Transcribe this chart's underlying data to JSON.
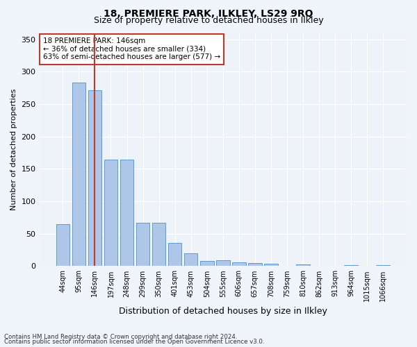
{
  "title1": "18, PREMIERE PARK, ILKLEY, LS29 9RQ",
  "title2": "Size of property relative to detached houses in Ilkley",
  "xlabel": "Distribution of detached houses by size in Ilkley",
  "ylabel": "Number of detached properties",
  "categories": [
    "44sqm",
    "95sqm",
    "146sqm",
    "197sqm",
    "248sqm",
    "299sqm",
    "350sqm",
    "401sqm",
    "453sqm",
    "504sqm",
    "555sqm",
    "606sqm",
    "657sqm",
    "708sqm",
    "759sqm",
    "810sqm",
    "862sqm",
    "913sqm",
    "964sqm",
    "1015sqm",
    "1066sqm"
  ],
  "values": [
    65,
    283,
    272,
    164,
    164,
    67,
    67,
    36,
    20,
    8,
    9,
    6,
    5,
    4,
    0,
    3,
    0,
    0,
    2,
    0,
    2
  ],
  "bar_color": "#aec6e8",
  "bar_edge_color": "#5b9bd5",
  "vline_x": 2,
  "vline_color": "#c0392b",
  "annotation_title": "18 PREMIERE PARK: 146sqm",
  "annotation_line1": "← 36% of detached houses are smaller (334)",
  "annotation_line2": "63% of semi-detached houses are larger (577) →",
  "annotation_box_color": "#c0392b",
  "ylim": [
    0,
    360
  ],
  "yticks": [
    0,
    50,
    100,
    150,
    200,
    250,
    300,
    350
  ],
  "footnote1": "Contains HM Land Registry data © Crown copyright and database right 2024.",
  "footnote2": "Contains public sector information licensed under the Open Government Licence v3.0.",
  "bg_color": "#f0f4fb",
  "plot_bg_color": "#eef2f9"
}
